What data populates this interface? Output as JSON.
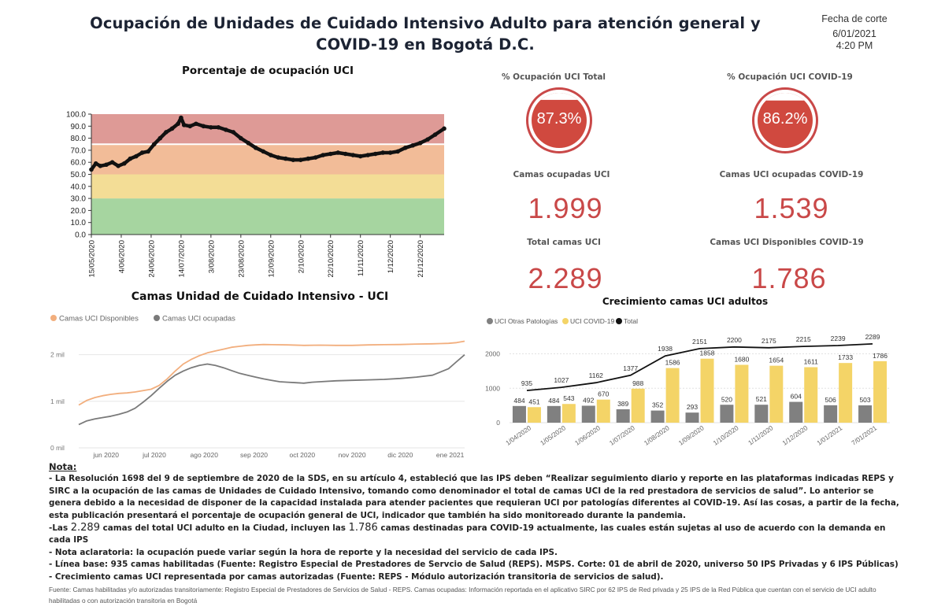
{
  "header": {
    "title_line1": "Ocupación de Unidades de Cuidado Intensivo Adulto para atención general y",
    "title_line2": "COVID-19 en Bogotá D.C.",
    "cut_label": "Fecha de corte",
    "cut_date": "6/01/2021",
    "cut_time": "4:20 PM"
  },
  "kpis": {
    "pct_total_label": "% Ocupación UCI Total",
    "pct_total": "87.3%",
    "pct_covid_label": "% Ocupación UCI COVID-19",
    "pct_covid": "86.2%",
    "beds_occupied_label": "Camas ocupadas UCI",
    "beds_occupied": "1.999",
    "covid_occupied_label": "Camas UCI ocupadas COVID-19",
    "covid_occupied": "1.539",
    "beds_total_label": "Total camas UCI",
    "beds_total": "2.289",
    "covid_available_label": "Camas UCI Disponibles COVID-19",
    "covid_available": "1.786",
    "colors": {
      "accent": "#c94848",
      "gauge_fill": "#d0493f"
    }
  },
  "chart_data": [
    {
      "id": "occupancy",
      "type": "line",
      "title": "Porcentaje de ocupación UCI",
      "ylim": [
        0,
        100
      ],
      "yticks": [
        "0.0",
        "10.0",
        "20.0",
        "30.0",
        "40.0",
        "50.0",
        "60.0",
        "70.0",
        "80.0",
        "90.0",
        "100.0"
      ],
      "xlim_days": [
        0,
        236
      ],
      "xticks": [
        {
          "label": "15/05/2020",
          "day": 0
        },
        {
          "label": "4/06/2020",
          "day": 20
        },
        {
          "label": "24/06/2020",
          "day": 40
        },
        {
          "label": "14/07/2020",
          "day": 60
        },
        {
          "label": "3/08/2020",
          "day": 80
        },
        {
          "label": "23/08/2020",
          "day": 100
        },
        {
          "label": "12/09/2020",
          "day": 120
        },
        {
          "label": "2/10/2020",
          "day": 140
        },
        {
          "label": "22/10/2020",
          "day": 160
        },
        {
          "label": "11/11/2020",
          "day": 180
        },
        {
          "label": "1/12/2020",
          "day": 200
        },
        {
          "label": "21/12/2020",
          "day": 220
        }
      ],
      "bands": [
        {
          "from": 0,
          "to": 30,
          "color": "#a6d5a0"
        },
        {
          "from": 30,
          "to": 50,
          "color": "#f3dd96"
        },
        {
          "from": 50,
          "to": 75,
          "color": "#f2bc98"
        },
        {
          "from": 75,
          "to": 100,
          "color": "#de9a96"
        }
      ],
      "series_days": [
        0,
        3,
        6,
        10,
        14,
        18,
        22,
        26,
        30,
        34,
        38,
        42,
        46,
        50,
        54,
        58,
        60,
        62,
        66,
        70,
        75,
        80,
        85,
        90,
        95,
        100,
        105,
        110,
        115,
        120,
        125,
        130,
        135,
        140,
        145,
        150,
        155,
        160,
        165,
        170,
        175,
        180,
        185,
        190,
        195,
        200,
        205,
        210,
        215,
        220,
        225,
        230,
        236
      ],
      "series_values": [
        54,
        59,
        57,
        58,
        60,
        57,
        59,
        63,
        65,
        68,
        69,
        75,
        80,
        85,
        88,
        92,
        97,
        91,
        90,
        92,
        90,
        89,
        89,
        87,
        85,
        80,
        76,
        72,
        69,
        66,
        64,
        63,
        62,
        62,
        63,
        64,
        66,
        67,
        68,
        67,
        66,
        65,
        66,
        67,
        68,
        68,
        69,
        72,
        74,
        76,
        79,
        83,
        88
      ]
    },
    {
      "id": "beds",
      "type": "line",
      "title": "Camas Unidad de Cuidado Intensivo - UCI",
      "ylim": [
        0,
        2400
      ],
      "yticks": [
        {
          "label": "0 mil",
          "value": 0
        },
        {
          "label": "1 mil",
          "value": 1000
        },
        {
          "label": "2 mil",
          "value": 2000
        }
      ],
      "xlim_days": [
        0,
        240
      ],
      "xticks": [
        {
          "label": "jun 2020",
          "day": 17
        },
        {
          "label": "jul 2020",
          "day": 47
        },
        {
          "label": "ago 2020",
          "day": 78
        },
        {
          "label": "sep 2020",
          "day": 109
        },
        {
          "label": "oct 2020",
          "day": 139
        },
        {
          "label": "nov 2020",
          "day": 170
        },
        {
          "label": "dic 2020",
          "day": 200
        },
        {
          "label": "ene 2021",
          "day": 231
        }
      ],
      "series": [
        {
          "name": "Camas UCI Disponibles",
          "color": "#f2ae7d",
          "days": [
            0,
            5,
            10,
            15,
            20,
            25,
            30,
            35,
            40,
            45,
            50,
            55,
            60,
            65,
            70,
            75,
            80,
            85,
            90,
            95,
            100,
            105,
            110,
            115,
            120,
            130,
            140,
            150,
            160,
            170,
            180,
            190,
            200,
            210,
            220,
            225,
            230,
            235,
            240
          ],
          "values": [
            920,
            1020,
            1080,
            1120,
            1150,
            1170,
            1180,
            1200,
            1230,
            1260,
            1340,
            1480,
            1650,
            1800,
            1900,
            1980,
            2040,
            2080,
            2120,
            2160,
            2180,
            2200,
            2210,
            2220,
            2215,
            2210,
            2200,
            2205,
            2200,
            2200,
            2210,
            2215,
            2220,
            2230,
            2235,
            2240,
            2245,
            2260,
            2290
          ]
        },
        {
          "name": "Camas UCI ocupadas",
          "color": "#7a7a7a",
          "days": [
            0,
            5,
            10,
            15,
            20,
            25,
            30,
            35,
            40,
            45,
            50,
            55,
            60,
            65,
            70,
            75,
            80,
            85,
            90,
            95,
            100,
            105,
            110,
            115,
            120,
            125,
            130,
            135,
            140,
            145,
            150,
            160,
            170,
            180,
            190,
            200,
            210,
            220,
            230,
            235,
            240
          ],
          "values": [
            500,
            580,
            620,
            650,
            680,
            720,
            770,
            850,
            980,
            1120,
            1280,
            1430,
            1560,
            1650,
            1720,
            1770,
            1800,
            1770,
            1720,
            1660,
            1600,
            1560,
            1520,
            1480,
            1450,
            1420,
            1410,
            1400,
            1390,
            1410,
            1420,
            1440,
            1450,
            1460,
            1470,
            1490,
            1520,
            1560,
            1700,
            1850,
            1999
          ]
        }
      ]
    },
    {
      "id": "growth",
      "type": "bar",
      "title": "Crecimiento camas UCI adultos",
      "ylim": [
        0,
        2400
      ],
      "yticks": [
        {
          "label": "0",
          "value": 0
        },
        {
          "label": "1000",
          "value": 1000
        },
        {
          "label": "2000",
          "value": 2000
        }
      ],
      "categories": [
        "1/04/2020",
        "1/05/2020",
        "1/06/2020",
        "1/07/2020",
        "1/08/2020",
        "1/09/2020",
        "1/10/2020",
        "1/11/2020",
        "1/12/2020",
        "1/01/2021",
        "7/01/2021"
      ],
      "series": [
        {
          "name": "UCI Otras Patologías",
          "color": "#808080",
          "values": [
            484,
            484,
            492,
            389,
            352,
            293,
            520,
            521,
            604,
            506,
            503
          ]
        },
        {
          "name": "UCI COVID-19",
          "color": "#f4d467",
          "values": [
            451,
            543,
            670,
            988,
            1586,
            1858,
            1680,
            1654,
            1611,
            1733,
            1786
          ]
        },
        {
          "name": "Total",
          "color": "#111111",
          "values": [
            935,
            1027,
            1162,
            1377,
            1938,
            2151,
            2200,
            2175,
            2215,
            2239,
            2289
          ]
        }
      ]
    }
  ],
  "notes": {
    "title": "Nota:",
    "p1": "- La Resolución 1698 del 9 de septiembre de 2020 de la SDS, en su artículo 4, estableció que las IPS deben “Realizar seguimiento diario y reporte en las plataformas indicadas REPS y SIRC a la ocupación de las camas de Unidades de Cuidado Intensivo, tomando como denominador el total de camas UCI de la red prestadora de servicios de salud”. Lo anterior se genera debido a la necesidad de disponer de la capacidad instalada para atender pacientes que requieran UCI por patologías diferentes al COVID-19. Así las cosas, a partir de la fecha, esta publicación presentará el porcentaje de ocupación general de UCI, indicador que también ha sido monitoreado durante la pandemia.",
    "p2_a": "-Las ",
    "p2_num1": "2.289",
    "p2_b": " camas del total UCI adulto en la Ciudad, incluyen las ",
    "p2_num2": "1.786",
    "p2_c": " camas destinadas para COVID-19 actualmente, las cuales están sujetas al uso de acuerdo con la demanda en cada IPS",
    "p3": "- Nota aclaratoria: la ocupación puede variar según la hora de reporte y la necesidad del servicio de cada IPS.",
    "p4": "- Línea base: 935 camas habilitadas (Fuente: Registro Especial de Prestadores de Servcio de Salud (REPS). MSPS. Corte: 01 de abril de 2020, universo 50 IPS Privadas y 6 IPS Públicas)",
    "p5": "- Crecimiento camas UCI representada por camas autorizadas (Fuente:  REPS - Módulo autorización transitoria de servicios de salud).",
    "source": "Fuente:  Camas habilitadas y/o autorizadas transitoriamente:  Registro Especial de Prestadores de Servicios de Salud - REPS. Camas ocupadas: Información reportada en el aplicativo SIRC por 62 IPS de Red privada y 25 IPS de la Red Pública que cuentan con el servicio de UCI adulto habilitadas o con autorización transitoria en Bogotá"
  }
}
